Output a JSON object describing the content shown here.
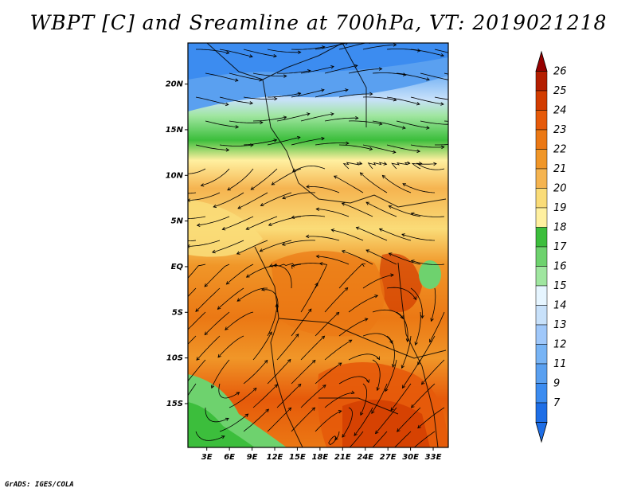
{
  "title": "WBPT [C] and Sreamline at 700hPa, VT: 2019021218",
  "credit": "GrADS: IGES/COLA",
  "map": {
    "variable": "Wet-bulb potential temperature",
    "units": "C",
    "level": "700hPa",
    "valid_time": "2019021218",
    "lon_labels": [
      "3E",
      "6E",
      "9E",
      "12E",
      "15E",
      "18E",
      "21E",
      "24E",
      "27E",
      "30E",
      "33E"
    ],
    "lon_values": [
      3,
      6,
      9,
      12,
      15,
      18,
      21,
      24,
      27,
      30,
      33
    ],
    "lat_labels": [
      "20N",
      "15N",
      "10N",
      "5N",
      "EQ",
      "5S",
      "10S",
      "15S"
    ],
    "lat_values": [
      20,
      15,
      10,
      5,
      0,
      -5,
      -10,
      -15
    ],
    "lon_range": [
      0.5,
      35
    ],
    "lat_range": [
      -19.8,
      24.5
    ]
  },
  "colorbar": {
    "labels": [
      "7",
      "9",
      "11",
      "12",
      "13",
      "14",
      "15",
      "16",
      "17",
      "18",
      "19",
      "20",
      "21",
      "22",
      "23",
      "24",
      "25",
      "26"
    ],
    "colors": [
      "#1e6ee6",
      "#3c8cf0",
      "#5aa0f0",
      "#78b4f5",
      "#a0c8fa",
      "#c8e1fa",
      "#e6f5ff",
      "#a0e6a0",
      "#6ed26e",
      "#3cbe3c",
      "#fff0a0",
      "#fadc78",
      "#f5b450",
      "#f09628",
      "#eb7814",
      "#e65a0a",
      "#d23c00",
      "#b41e00",
      "#960000"
    ]
  }
}
